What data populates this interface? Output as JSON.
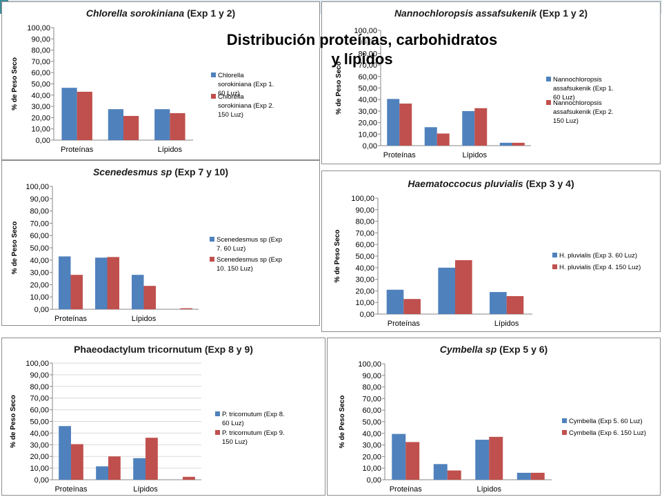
{
  "overlay_title": {
    "line1": "Distribución proteínas, carbohidratos",
    "line2": "y lípidos"
  },
  "colors": {
    "series1": "#4f81bd",
    "series2": "#c0504d",
    "axis": "#868686",
    "border": "#8c8c8c",
    "slide_accent": "#3f8d99"
  },
  "chart_data": [
    {
      "type": "bar",
      "title_species": "Chlorella sorokiniana",
      "title_suffix": " (Exp 1 y 2)",
      "ylabel": "% de Peso Seco",
      "ylim": [
        0,
        100
      ],
      "y_ticks": [
        "0,00",
        "10,00",
        "20,00",
        "30,00",
        "40,00",
        "50,00",
        "60,00",
        "70,00",
        "80,00",
        "90,00",
        "100,00"
      ],
      "categories": [
        "Proteínas",
        "",
        "Lípidos"
      ],
      "series": [
        {
          "name": "Chlorella sorokiniana (Exp 1. 60 Luz)",
          "values": [
            46.5,
            27.5,
            27.5
          ]
        },
        {
          "name": "Chlorella sorokiniana (Exp 2. 150 Luz)",
          "values": [
            43,
            21.5,
            24
          ]
        }
      ],
      "legend_position": "right"
    },
    {
      "type": "bar",
      "title_species": "Nannochloropsis assafsukenik",
      "title_suffix": " (Exp 1 y 2)",
      "ylabel": "% de Peso Seco",
      "ylim": [
        0,
        100
      ],
      "y_ticks": [
        "0,00",
        "10,00",
        "20,00",
        "30,00",
        "40,00",
        "50,00",
        "60,00",
        "70,00",
        "80,00",
        "90,00",
        "100,00"
      ],
      "categories": [
        "Proteínas",
        "",
        "Lípidos",
        ""
      ],
      "series": [
        {
          "name": "Nannochloropsis assafsukenik (Exp 1. 60 Luz)",
          "values": [
            40.5,
            16,
            30,
            2.5
          ]
        },
        {
          "name": "Nannochloropsis assafsukenik (Exp 2. 150 Luz)",
          "values": [
            36.5,
            10.5,
            32.5,
            2.5
          ]
        }
      ],
      "legend_position": "right"
    },
    {
      "type": "bar",
      "title_species": "Scenedesmus sp",
      "title_suffix": " (Exp 7 y 10)",
      "ylabel": "% de Peso Seco",
      "ylim": [
        0,
        100
      ],
      "y_ticks": [
        "0,00",
        "10,00",
        "20,00",
        "30,00",
        "40,00",
        "50,00",
        "60,00",
        "70,00",
        "80,00",
        "90,00",
        "100,00"
      ],
      "categories": [
        "Proteínas",
        "",
        "Lípidos",
        ""
      ],
      "series": [
        {
          "name": "Scenedesmus sp (Exp 7. 60 Luz)",
          "values": [
            43,
            42,
            28,
            0
          ]
        },
        {
          "name": "Scenedesmus sp (Exp 10. 150 Luz)",
          "values": [
            28,
            42.5,
            19,
            0.8
          ]
        }
      ],
      "legend_position": "right"
    },
    {
      "type": "bar",
      "title_species": "Haematoccocus pluvialis",
      "title_suffix": " (Exp 3 y 4)",
      "ylabel": "% de Peso Seco",
      "ylim": [
        0,
        100
      ],
      "y_ticks": [
        "0,00",
        "10,00",
        "20,00",
        "30,00",
        "40,00",
        "50,00",
        "60,00",
        "70,00",
        "80,00",
        "90,00",
        "100,00"
      ],
      "categories": [
        "Proteínas",
        "",
        "Lípidos"
      ],
      "series": [
        {
          "name": "H. pluvialis (Exp 3. 60 Luz)",
          "values": [
            21,
            40,
            19
          ]
        },
        {
          "name": "H. pluvialis (Exp 4. 150 Luz)",
          "values": [
            13,
            46.5,
            15.5
          ]
        }
      ],
      "legend_position": "right"
    },
    {
      "type": "bar",
      "title_species": "",
      "title_suffix": "Phaeodactylum tricornutum (Exp 8 y 9)",
      "ylabel": "% de Peso Seco",
      "ylim": [
        0,
        100
      ],
      "y_ticks": [
        "0,00",
        "10,00",
        "20,00",
        "30,00",
        "40,00",
        "50,00",
        "60,00",
        "70,00",
        "80,00",
        "90,00",
        "100,00"
      ],
      "categories": [
        "Proteínas",
        "",
        "Lípidos",
        ""
      ],
      "series": [
        {
          "name": "P. tricornutum (Exp 8. 60 Luz)",
          "values": [
            46,
            11.5,
            18.5,
            0
          ]
        },
        {
          "name": "P. tricornutum (Exp 9. 150 Luz)",
          "values": [
            30.5,
            20,
            36,
            2.5
          ]
        }
      ],
      "legend_position": "right"
    },
    {
      "type": "bar",
      "title_species": "Cymbella sp",
      "title_suffix": " (Exp 5 y 6)",
      "ylabel": "% de Peso Seco",
      "ylim": [
        0,
        100
      ],
      "y_ticks": [
        "0,00",
        "10,00",
        "20,00",
        "30,00",
        "40,00",
        "50,00",
        "60,00",
        "70,00",
        "80,00",
        "90,00",
        "100,00"
      ],
      "categories": [
        "Proteínas",
        "",
        "Lípidos",
        ""
      ],
      "series": [
        {
          "name": "Cymbella (Exp 5. 60 Luz)",
          "values": [
            39.5,
            13.5,
            34.5,
            6
          ]
        },
        {
          "name": "Cymbella (Exp 6. 150 Luz)",
          "values": [
            32.5,
            8,
            37,
            6
          ]
        }
      ],
      "legend_position": "right"
    }
  ]
}
